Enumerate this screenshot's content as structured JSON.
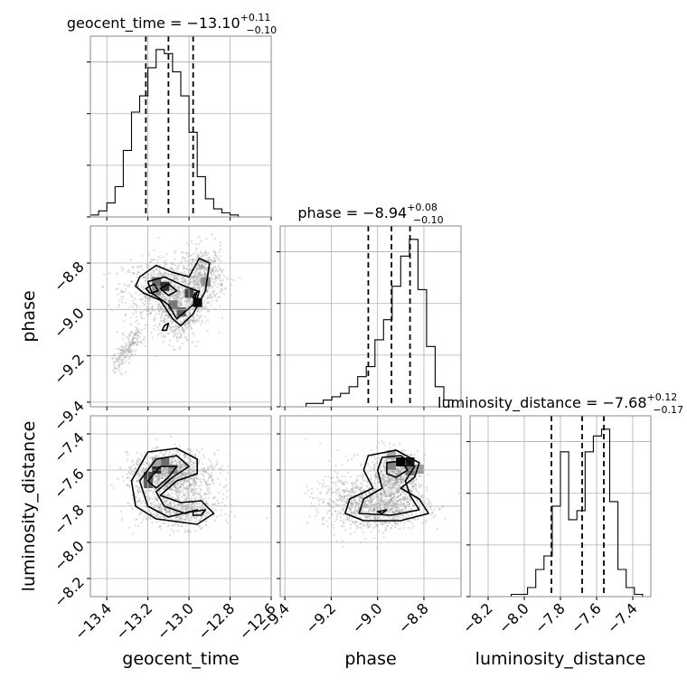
{
  "chart_data": {
    "type": "corner",
    "parameters": [
      "geocent_time",
      "phase",
      "luminosity_distance"
    ],
    "axis_labels": [
      "geocent_time",
      "phase",
      "luminosity_distance"
    ],
    "titles": [
      {
        "prefix": "geocent_time = ",
        "value": "−13.10",
        "plus": "+0.11",
        "minus": "−0.10"
      },
      {
        "prefix": "phase = ",
        "value": "−8.94",
        "plus": "+0.08",
        "minus": "−0.10"
      },
      {
        "prefix": "luminosity_distance = ",
        "value": "−7.68",
        "plus": "+0.12",
        "minus": "−0.17"
      }
    ],
    "ranges": [
      [
        -13.48,
        -12.6
      ],
      [
        -9.42,
        -8.64
      ],
      [
        -8.3,
        -7.3
      ]
    ],
    "ticks": [
      {
        "values": [
          -13.4,
          -13.2,
          -13.0,
          -12.8,
          -12.6
        ],
        "labels": [
          "−13.4",
          "−13.2",
          "−13.0",
          "−12.8",
          "−12.6"
        ]
      },
      {
        "values": [
          -9.4,
          -9.2,
          -9.0,
          -8.8
        ],
        "labels": [
          "−9.4",
          "−9.2",
          "−9.0",
          "−8.8"
        ]
      },
      {
        "values": [
          -8.2,
          -8.0,
          -7.8,
          -7.6,
          -7.4
        ],
        "labels": [
          "−8.2",
          "−8.0",
          "−7.8",
          "−7.6",
          "−7.4"
        ]
      }
    ],
    "quantiles": [
      [
        -13.21,
        -13.1,
        -12.98
      ],
      [
        -9.04,
        -8.94,
        -8.86
      ],
      [
        -7.85,
        -7.68,
        -7.56
      ]
    ],
    "histograms": [
      {
        "edges_range": [
          -13.48,
          -12.6
        ],
        "counts": [
          1,
          3,
          7,
          15,
          33,
          52,
          60,
          74,
          83,
          81,
          72,
          60,
          42,
          20,
          9,
          4,
          2,
          1,
          0,
          0,
          0,
          0
        ]
      },
      {
        "edges_range": [
          -9.42,
          -8.64
        ],
        "counts": [
          0,
          0,
          0,
          1,
          1,
          2,
          3,
          4,
          6,
          9,
          12,
          20,
          26,
          36,
          45,
          50,
          35,
          18,
          6,
          2,
          0
        ]
      },
      {
        "edges_range": [
          -8.3,
          -7.3
        ],
        "counts": [
          0,
          0,
          0,
          0,
          0,
          1,
          1,
          4,
          12,
          18,
          40,
          64,
          34,
          38,
          64,
          71,
          74,
          42,
          12,
          4,
          1,
          0
        ]
      }
    ],
    "grid": true
  }
}
